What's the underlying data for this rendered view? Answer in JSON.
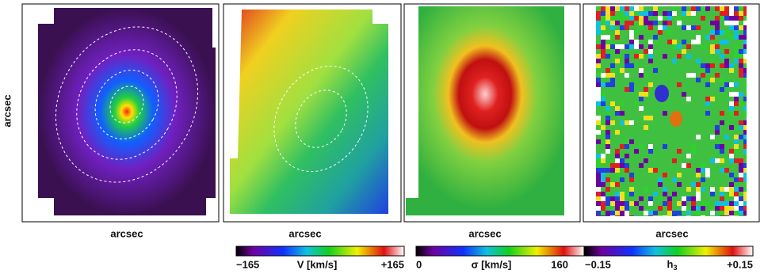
{
  "figure": {
    "y_label": "arcsec",
    "panels": [
      {
        "x_label": "arcsec"
      },
      {
        "x_label": "arcsec"
      },
      {
        "x_label": "arcsec"
      },
      {
        "x_label": "arcsec"
      }
    ],
    "colorbars": [
      {
        "min": "−165",
        "label": "V  [km/s]",
        "max": "+165"
      },
      {
        "min": "0",
        "label": "σ  [km/s]",
        "max": "160"
      },
      {
        "min": "−0.15",
        "label": "h",
        "label_subscript": "3",
        "max": "+0.15"
      }
    ]
  }
}
